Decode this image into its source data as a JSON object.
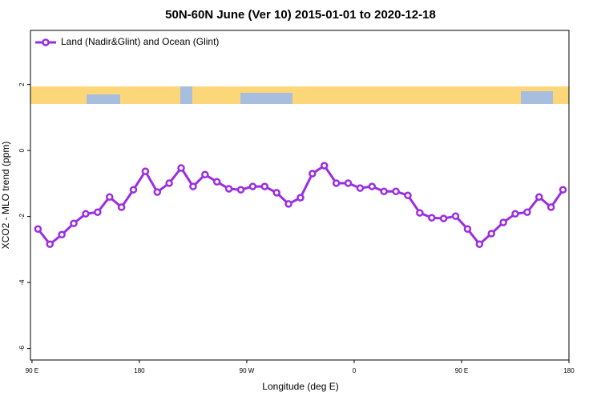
{
  "chart_data": {
    "type": "line",
    "title": "50N-60N June (Ver 10)   2015-01-01 to 2020-12-18",
    "x_label": "Longitude (deg E)",
    "y_label": "XCO2 - MLO trend (ppm)",
    "x": [
      95,
      105,
      115,
      125,
      135,
      145,
      155,
      165,
      175,
      185,
      195,
      205,
      215,
      225,
      235,
      245,
      255,
      265,
      275,
      285,
      295,
      305,
      315,
      325,
      335,
      345,
      355,
      365,
      375,
      385,
      395,
      405,
      415,
      425,
      435,
      445,
      455,
      465,
      475,
      485,
      495,
      505,
      515,
      525,
      535
    ],
    "series": [
      {
        "name": "Land (Nadir&Glint) and Ocean (Glint)",
        "color": "#9b2de0",
        "values": [
          -2.38,
          -2.84,
          -2.55,
          -2.21,
          -1.92,
          -1.87,
          -1.41,
          -1.72,
          -1.19,
          -0.63,
          -1.26,
          -0.99,
          -0.53,
          -1.09,
          -0.73,
          -0.95,
          -1.16,
          -1.19,
          -1.09,
          -1.09,
          -1.28,
          -1.62,
          -1.43,
          -0.7,
          -0.46,
          -0.99,
          -0.99,
          -1.14,
          -1.09,
          -1.24,
          -1.24,
          -1.36,
          -1.89,
          -2.04,
          -2.06,
          -1.99,
          -2.38,
          -2.84,
          -2.52,
          -2.18,
          -1.92,
          -1.87,
          -1.41,
          -1.72,
          -1.19
        ]
      }
    ],
    "xlim": [
      88.7,
      540
    ],
    "xticks": [
      {
        "value": 90,
        "label": "90 E"
      },
      {
        "value": 180,
        "label": "180"
      },
      {
        "value": 270,
        "label": "90 W"
      },
      {
        "value": 360,
        "label": "0"
      },
      {
        "value": 450,
        "label": "90 E"
      },
      {
        "value": 540,
        "label": "180"
      }
    ],
    "ylim": [
      -6.35,
      3.64
    ],
    "yticks": [
      -6,
      -4,
      -2,
      0,
      2
    ],
    "legend": "top-left"
  }
}
